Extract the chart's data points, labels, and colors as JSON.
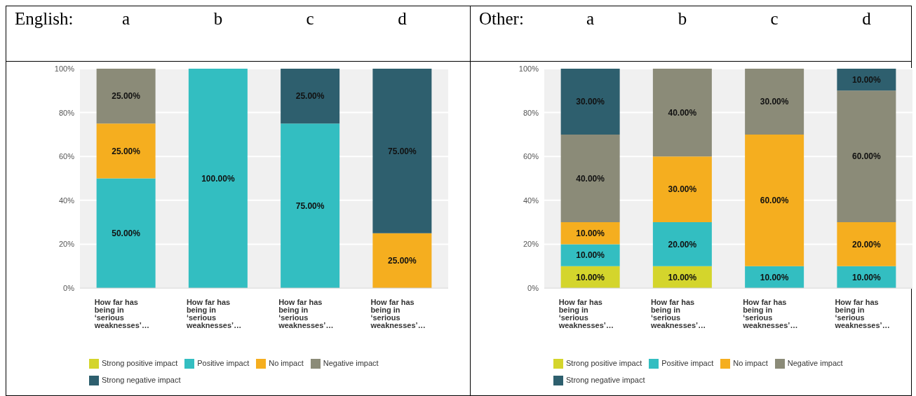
{
  "chart_data": [
    {
      "type": "bar",
      "stacked": true,
      "title": "English:",
      "annotations": [
        "a",
        "b",
        "c",
        "d"
      ],
      "categories": [
        "How far has being in ‘serious weaknesses’…",
        "How far has being in ‘serious weaknesses’…",
        "How far has being in ‘serious weaknesses’…",
        "How far has being in ‘serious weaknesses’…"
      ],
      "series": [
        {
          "name": "Strong positive impact",
          "color": "#d4d52c",
          "values": [
            null,
            null,
            null,
            null
          ],
          "value_labels": [
            null,
            null,
            null,
            null
          ]
        },
        {
          "name": "Positive impact",
          "color": "#33bec1",
          "values": [
            50,
            100,
            75,
            null
          ],
          "value_labels": [
            "50.00%",
            "100.00%",
            "75.00%",
            null
          ]
        },
        {
          "name": "No impact",
          "color": "#f5ae1f",
          "values": [
            25,
            null,
            null,
            25
          ],
          "value_labels": [
            "25.00%",
            null,
            null,
            "25.00%"
          ]
        },
        {
          "name": "Negative impact",
          "color": "#8b8b78",
          "values": [
            25,
            null,
            null,
            null
          ],
          "value_labels": [
            "25.00%",
            null,
            null,
            null
          ]
        },
        {
          "name": "Strong negative impact",
          "color": "#2e5f6e",
          "values": [
            null,
            null,
            25,
            75
          ],
          "value_labels": [
            null,
            null,
            "25.00%",
            "75.00%"
          ]
        }
      ],
      "ylim": [
        0,
        100
      ],
      "yticks": [
        {
          "value": 0,
          "label": "0%"
        },
        {
          "value": 20,
          "label": "20%"
        },
        {
          "value": 40,
          "label": "40%"
        },
        {
          "value": 60,
          "label": "60%"
        },
        {
          "value": 80,
          "label": "80%"
        },
        {
          "value": 100,
          "label": "100%"
        }
      ],
      "grid": "y",
      "legend": "bottom"
    },
    {
      "type": "bar",
      "stacked": true,
      "title": "Other:",
      "annotations": [
        "a",
        "b",
        "c",
        "d"
      ],
      "categories": [
        "How far has being in ‘serious weaknesses’…",
        "How far has being in ‘serious weaknesses’…",
        "How far has being in ‘serious weaknesses’…",
        "How far has being in ‘serious weaknesses’…"
      ],
      "series": [
        {
          "name": "Strong positive impact",
          "color": "#d4d52c",
          "values": [
            10,
            10,
            null,
            null
          ],
          "value_labels": [
            "10.00%",
            "10.00%",
            null,
            null
          ]
        },
        {
          "name": "Positive impact",
          "color": "#33bec1",
          "values": [
            10,
            20,
            10,
            10
          ],
          "value_labels": [
            "10.00%",
            "20.00%",
            "10.00%",
            "10.00%"
          ]
        },
        {
          "name": "No impact",
          "color": "#f5ae1f",
          "values": [
            10,
            30,
            60,
            20
          ],
          "value_labels": [
            "10.00%",
            "30.00%",
            "60.00%",
            "20.00%"
          ]
        },
        {
          "name": "Negative impact",
          "color": "#8b8b78",
          "values": [
            40,
            40,
            30,
            60
          ],
          "value_labels": [
            "40.00%",
            "40.00%",
            "30.00%",
            "60.00%"
          ]
        },
        {
          "name": "Strong negative impact",
          "color": "#2e5f6e",
          "values": [
            30,
            null,
            null,
            10
          ],
          "value_labels": [
            "30.00%",
            null,
            null,
            "10.00%"
          ]
        }
      ],
      "ylim": [
        0,
        100
      ],
      "yticks": [
        {
          "value": 0,
          "label": "0%"
        },
        {
          "value": 20,
          "label": "20%"
        },
        {
          "value": 40,
          "label": "40%"
        },
        {
          "value": 60,
          "label": "60%"
        },
        {
          "value": 80,
          "label": "80%"
        },
        {
          "value": 100,
          "label": "100%"
        }
      ],
      "grid": "y",
      "legend": "bottom"
    }
  ]
}
